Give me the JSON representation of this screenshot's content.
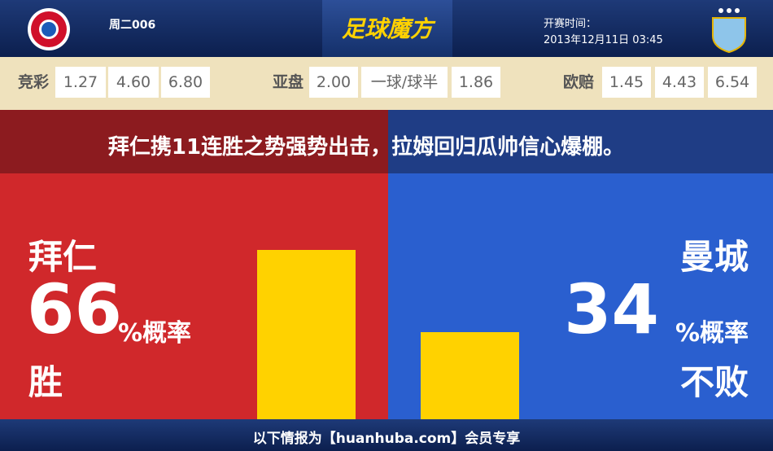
{
  "header": {
    "match_no": "周二006",
    "brand": "足球魔方",
    "time_label": "开赛时间：",
    "time": "2013年12月11日 03:45"
  },
  "odds": {
    "jingcai": {
      "label": "竞彩",
      "values": [
        "1.27",
        "4.60",
        "6.80"
      ]
    },
    "asian": {
      "label": "亚盘",
      "values": [
        "2.00",
        "一球/球半",
        "1.86"
      ]
    },
    "euro": {
      "label": "欧赔",
      "values": [
        "1.45",
        "4.43",
        "6.54"
      ]
    }
  },
  "headline": "拜仁携11连胜之势强势出击，拉姆回归瓜帅信心爆棚。",
  "teams": [
    {
      "name": "拜仁",
      "probability": 66,
      "unit": "%概率",
      "outcome": "胜"
    },
    {
      "name": "曼城",
      "probability": 34,
      "unit": "%概率",
      "outcome": "不败"
    }
  ],
  "footer": "以下情报为【huanhuba.com】会员专享"
}
